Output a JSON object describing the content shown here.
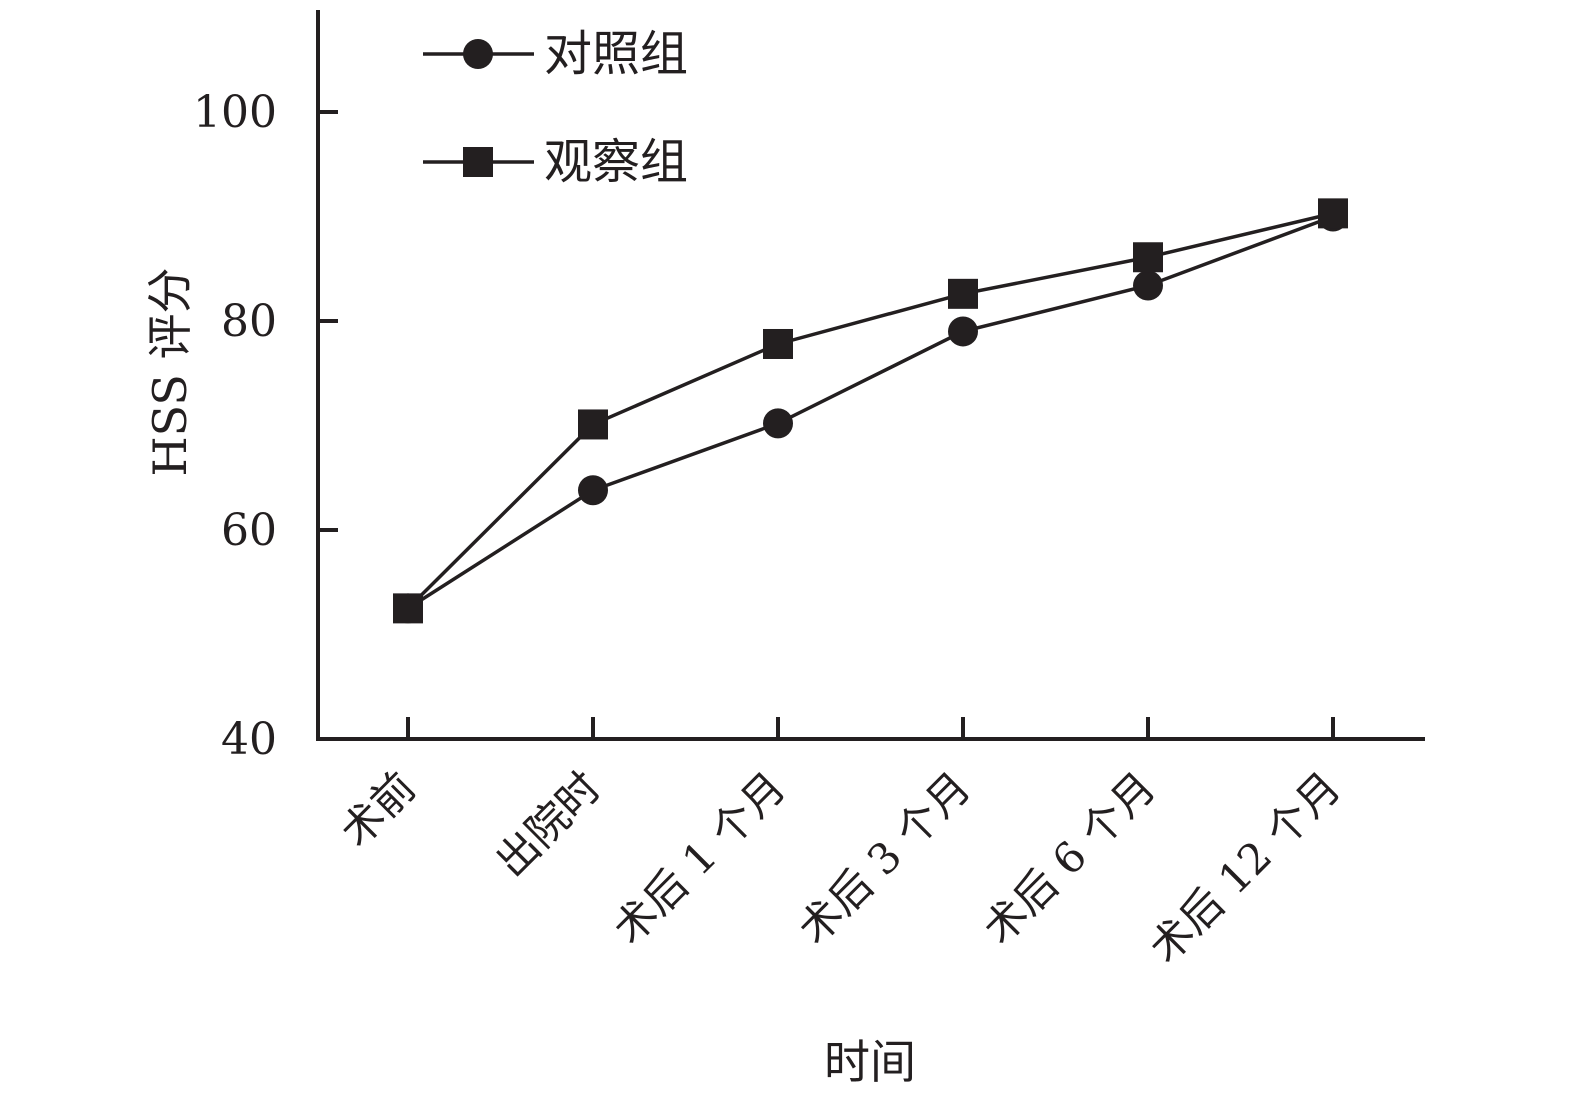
{
  "chart_data": {
    "type": "line",
    "title": "",
    "xlabel": "时间",
    "ylabel": "HSS 评分",
    "categories": [
      "术前",
      "出院时",
      "术后 1 个月",
      "术后 3 个月",
      "术后 6 个月",
      "术后 12 个月"
    ],
    "ylim": [
      40,
      110
    ],
    "yticks": [
      40,
      60,
      80,
      100
    ],
    "grid": false,
    "legend_position": "top-left",
    "series": [
      {
        "name": "对照组",
        "marker": "circle",
        "values": [
          52.5,
          63.8,
          70.2,
          79.0,
          83.4,
          90.0
        ]
      },
      {
        "name": "观察组",
        "marker": "square",
        "values": [
          52.5,
          70.1,
          77.8,
          82.6,
          86.1,
          90.3
        ]
      }
    ],
    "colors": {
      "axis": "#231f20",
      "line": "#231f20",
      "marker": "#231f20"
    }
  }
}
